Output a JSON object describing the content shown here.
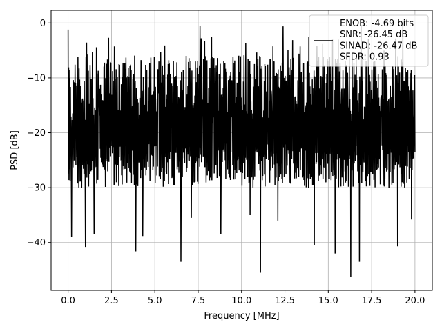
{
  "chart_data": {
    "type": "line",
    "title": "",
    "xlabel": "Frequency [MHz]",
    "ylabel": "PSD [dB]",
    "xlim": [
      -0.98,
      21.0
    ],
    "ylim": [
      -48.7,
      2.3
    ],
    "xticks": [
      0.0,
      2.5,
      5.0,
      7.5,
      10.0,
      12.5,
      15.0,
      17.5,
      20.0
    ],
    "xtick_labels": [
      "0.0",
      "2.5",
      "5.0",
      "7.5",
      "10.0",
      "12.5",
      "15.0",
      "17.5",
      "20.0"
    ],
    "yticks": [
      0,
      -10,
      -20,
      -30,
      -40
    ],
    "ytick_labels": [
      "0",
      "−10",
      "−20",
      "−30",
      "−40"
    ],
    "grid": true,
    "legend_position": "top-right",
    "line_color": "#000000",
    "series": [
      {
        "name": "ENOB: -4.69 bits\nSNR: -26.45 dB\nSINAD: -26.47 dB\nSFDR: 0.93",
        "x_range": [
          0.0,
          20.0
        ],
        "num_points": 1200,
        "upper_envelope_db": -6,
        "lower_floor_db": -28,
        "deep_nulls": [
          {
            "x": 0.2,
            "y": -39.0
          },
          {
            "x": 1.0,
            "y": -40.8
          },
          {
            "x": 1.5,
            "y": -38.5
          },
          {
            "x": 3.9,
            "y": -41.6
          },
          {
            "x": 4.3,
            "y": -38.8
          },
          {
            "x": 6.5,
            "y": -43.5
          },
          {
            "x": 7.1,
            "y": -35.5
          },
          {
            "x": 8.8,
            "y": -38.5
          },
          {
            "x": 10.5,
            "y": -35.0
          },
          {
            "x": 11.1,
            "y": -45.5
          },
          {
            "x": 12.1,
            "y": -36.0
          },
          {
            "x": 14.2,
            "y": -40.5
          },
          {
            "x": 15.4,
            "y": -42.0
          },
          {
            "x": 16.3,
            "y": -46.3
          },
          {
            "x": 16.8,
            "y": -43.5
          },
          {
            "x": 19.0,
            "y": -40.7
          },
          {
            "x": 19.8,
            "y": -35.8
          }
        ],
        "peaks": [
          {
            "x": 0.0,
            "y": -1.2
          },
          {
            "x": 7.6,
            "y": -0.5
          },
          {
            "x": 12.4,
            "y": -0.6
          },
          {
            "x": 16.9,
            "y": -0.5
          },
          {
            "x": 19.3,
            "y": -0.4
          }
        ]
      }
    ]
  }
}
